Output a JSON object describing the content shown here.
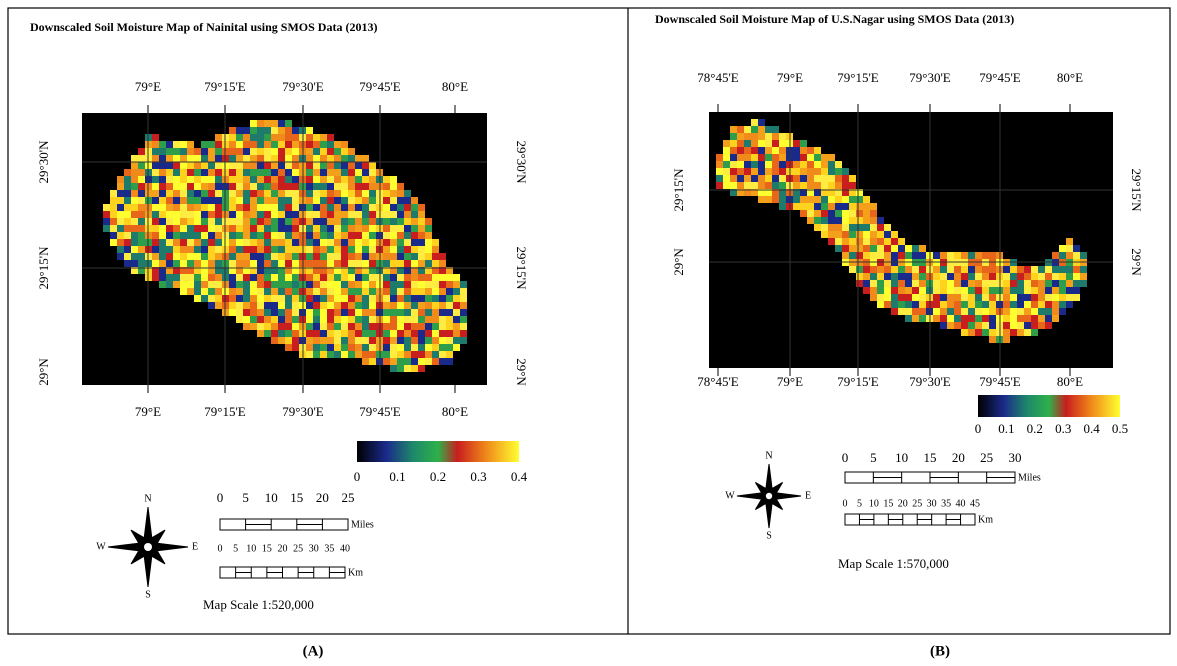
{
  "figure": {
    "panels": [
      {
        "title": "Downscaled Soil Moisture Map of Nainital using SMOS Data (2013)",
        "top_ticks": [
          "79°E",
          "79°15'E",
          "79°30'E",
          "79°45'E",
          "80°E"
        ],
        "bottom_ticks": [
          "79°E",
          "79°15'E",
          "79°30'E",
          "79°45'E",
          "80°E"
        ],
        "left_ticks": [
          "29°30'N",
          "29°15'N",
          "29°N"
        ],
        "right_ticks": [
          "29°30'N",
          "29°15'N",
          "29°N"
        ],
        "legend_labels": [
          "0",
          "0.1",
          "0.2",
          "0.3",
          "0.4"
        ],
        "miles_labels": [
          "0",
          "5",
          "10",
          "15",
          "20",
          "25"
        ],
        "miles_unit": "Miles",
        "km_labels": [
          "0",
          "5",
          "10",
          "15",
          "20",
          "25",
          "30",
          "35",
          "40"
        ],
        "km_unit": "Km",
        "scale": "Map Scale 1:520,000",
        "compass": {
          "n": "N",
          "e": "E",
          "s": "S",
          "w": "W"
        },
        "caption": "(A)"
      },
      {
        "title": "Downscaled Soil Moisture Map of U.S.Nagar using SMOS Data (2013)",
        "top_ticks": [
          "78°45'E",
          "79°E",
          "79°15'E",
          "79°30'E",
          "79°45'E",
          "80°E"
        ],
        "bottom_ticks": [
          "78°45'E",
          "79°E",
          "79°15'E",
          "79°30'E",
          "79°45'E",
          "80°E"
        ],
        "left_ticks": [
          "29°15'N",
          "29°N"
        ],
        "right_ticks": [
          "29°15'N",
          "29°N"
        ],
        "legend_labels": [
          "0",
          "0.1",
          "0.2",
          "0.3",
          "0.4",
          "0.5"
        ],
        "miles_labels": [
          "0",
          "5",
          "10",
          "15",
          "20",
          "25",
          "30"
        ],
        "miles_unit": "Miles",
        "km_labels": [
          "0",
          "5",
          "10",
          "15",
          "20",
          "25",
          "30",
          "35",
          "40",
          "45"
        ],
        "km_unit": "Km",
        "scale": "Map Scale 1:570,000",
        "compass": {
          "n": "N",
          "e": "E",
          "s": "S",
          "w": "W"
        },
        "caption": "(B)"
      }
    ]
  }
}
